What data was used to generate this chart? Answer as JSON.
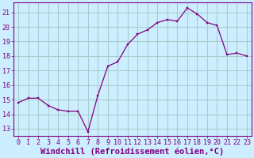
{
  "x": [
    0,
    1,
    2,
    3,
    4,
    5,
    6,
    7,
    8,
    9,
    10,
    11,
    12,
    13,
    14,
    15,
    16,
    17,
    18,
    19,
    20,
    21,
    22,
    23
  ],
  "y": [
    14.8,
    15.1,
    15.1,
    14.6,
    14.3,
    14.2,
    14.2,
    12.8,
    15.3,
    17.3,
    17.6,
    18.8,
    19.5,
    19.8,
    20.3,
    20.5,
    20.4,
    21.3,
    20.9,
    20.3,
    20.1,
    18.1,
    18.2,
    18.0
  ],
  "line_color": "#800080",
  "marker_color": "#800080",
  "bg_color": "#cceeff",
  "grid_color": "#aacccc",
  "xlabel": "Windchill (Refroidissement éolien,°C)",
  "ylabel_ticks": [
    13,
    14,
    15,
    16,
    17,
    18,
    19,
    20,
    21
  ],
  "ylim": [
    12.5,
    21.7
  ],
  "xlim": [
    -0.5,
    23.5
  ],
  "xtick_labels": [
    "0",
    "1",
    "2",
    "3",
    "4",
    "5",
    "6",
    "7",
    "8",
    "9",
    "10",
    "11",
    "12",
    "13",
    "14",
    "15",
    "16",
    "17",
    "18",
    "19",
    "20",
    "21",
    "22",
    "23"
  ],
  "font_color": "#800080",
  "tick_fontsize": 6,
  "xlabel_fontsize": 7.5
}
